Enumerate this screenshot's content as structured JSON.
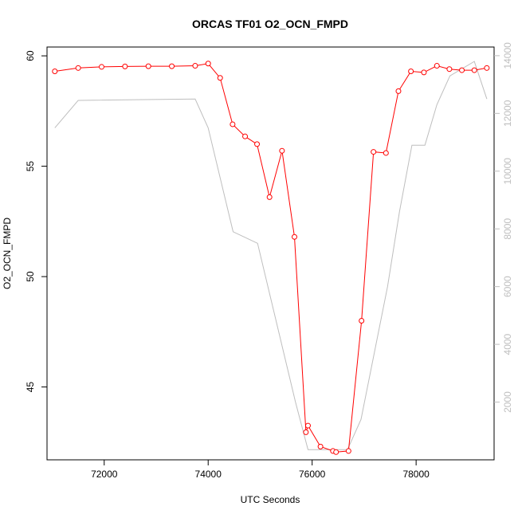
{
  "chart_data": {
    "type": "line",
    "title": "ORCAS TF01 O2_OCN_FMPD",
    "xlabel": "UTC Seconds",
    "ylabel": "O2_OCN_FMPD",
    "xlim": [
      70900,
      79500
    ],
    "ylim": [
      41.7,
      60.4
    ],
    "y2lim": [
      0,
      14300
    ],
    "x_ticks": [
      72000,
      74000,
      76000,
      78000
    ],
    "x_tick_labels": [
      "72000",
      "74000",
      "76000",
      "78000"
    ],
    "y_ticks": [
      45,
      50,
      55,
      60
    ],
    "y_tick_labels": [
      "45",
      "50",
      "55",
      "60"
    ],
    "y2_ticks": [
      2000,
      4000,
      6000,
      8000,
      10000,
      12000,
      14000
    ],
    "y2_tick_labels": [
      "2000",
      "4000",
      "6000",
      "8000",
      "10000",
      "12000",
      "14000"
    ],
    "grid": false,
    "series": [
      {
        "axis": "left",
        "color": "#ff0000",
        "style": "line+circles",
        "x": [
          71050,
          71500,
          71950,
          72400,
          72850,
          73300,
          73750,
          74000,
          74230,
          74470,
          74710,
          74940,
          75180,
          75420,
          75660,
          75880,
          75920,
          76160,
          76400,
          76460,
          76700,
          76950,
          77180,
          77420,
          77660,
          77900,
          78150,
          78400,
          78640,
          78880,
          79120,
          79360
        ],
        "y": [
          59.3,
          59.45,
          59.5,
          59.52,
          59.53,
          59.53,
          59.55,
          59.65,
          59.0,
          56.9,
          56.35,
          56.0,
          53.6,
          55.7,
          51.8,
          42.95,
          43.25,
          42.3,
          42.1,
          42.05,
          42.1,
          48.0,
          55.65,
          55.6,
          58.4,
          59.3,
          59.25,
          59.55,
          59.4,
          59.35,
          59.35,
          59.45
        ]
      },
      {
        "axis": "right",
        "color": "#bebebe",
        "style": "line",
        "x": [
          71050,
          71500,
          73750,
          74000,
          74480,
          74950,
          75680,
          75920,
          76680,
          76940,
          77450,
          77680,
          77920,
          78170,
          78400,
          78650,
          79120,
          79360
        ],
        "y": [
          11500,
          12450,
          12500,
          11500,
          7900,
          7500,
          2000,
          350,
          350,
          1400,
          6000,
          8600,
          10900,
          10900,
          12300,
          13300,
          13800,
          12500
        ]
      }
    ]
  }
}
